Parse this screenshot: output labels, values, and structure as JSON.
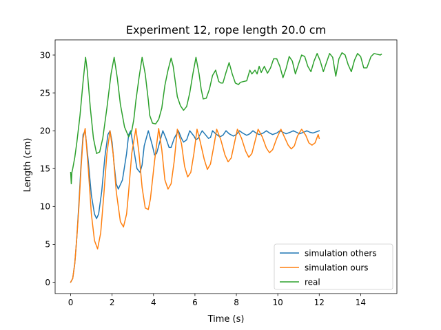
{
  "chart_data": {
    "type": "line",
    "title": "Experiment 12, rope length 20.0 cm",
    "xlabel": "Time (s)",
    "ylabel": "Length (cm)",
    "xlim": [
      -0.75,
      15.75
    ],
    "ylim": [
      -1.5,
      32
    ],
    "xticks": [
      0,
      2,
      4,
      6,
      8,
      10,
      12,
      14
    ],
    "yticks": [
      0,
      5,
      10,
      15,
      20,
      25,
      30
    ],
    "grid": false,
    "legend": "lower right",
    "colors": {
      "simulation_others": "#1f77b4",
      "simulation_ours": "#ff7f0e",
      "real": "#2ca02c"
    },
    "series": [
      {
        "name": "simulation others",
        "color": "#1f77b4",
        "x": [
          0,
          0.1,
          0.2,
          0.3,
          0.4,
          0.5,
          0.6,
          0.7,
          0.85,
          1.0,
          1.15,
          1.25,
          1.35,
          1.5,
          1.65,
          1.8,
          1.9,
          2.0,
          2.1,
          2.2,
          2.3,
          2.5,
          2.7,
          2.8,
          2.9,
          3.05,
          3.2,
          3.35,
          3.45,
          3.55,
          3.75,
          3.95,
          4.05,
          4.15,
          4.3,
          4.45,
          4.6,
          4.75,
          4.85,
          5.0,
          5.2,
          5.35,
          5.45,
          5.6,
          5.75,
          5.95,
          6.05,
          6.15,
          6.35,
          6.5,
          6.65,
          6.75,
          6.85,
          7.0,
          7.2,
          7.35,
          7.5,
          7.65,
          7.85,
          8.0,
          8.15,
          8.3,
          8.5,
          8.65,
          8.8,
          8.95,
          9.1,
          9.3,
          9.45,
          9.6,
          9.75,
          9.95,
          10.1,
          10.25,
          10.4,
          10.6,
          10.75,
          10.9,
          11.05,
          11.25,
          11.4,
          11.55,
          11.7,
          11.9,
          12.0
        ],
        "y": [
          0,
          0.5,
          2.5,
          6,
          10.5,
          15.5,
          19.5,
          20,
          16,
          11.5,
          9,
          8.4,
          9,
          12,
          16.5,
          19.5,
          20,
          18.5,
          15.5,
          13,
          12.3,
          13.5,
          17,
          19.5,
          20,
          17.5,
          15,
          14.5,
          15.5,
          18,
          20,
          18,
          16.8,
          17,
          18.5,
          20,
          19,
          17.8,
          17.8,
          19,
          20,
          19,
          18.5,
          18.8,
          20,
          19.3,
          18.8,
          19,
          20,
          19.5,
          19,
          19.1,
          20,
          19.6,
          19.2,
          19.4,
          20,
          19.6,
          19.3,
          19.5,
          20,
          19.7,
          19.4,
          19.6,
          20,
          19.7,
          19.5,
          19.7,
          20,
          19.7,
          19.5,
          19.7,
          20,
          19.8,
          19.6,
          19.8,
          20,
          19.8,
          19.6,
          19.8,
          20,
          19.8,
          19.7,
          19.9,
          20
        ]
      },
      {
        "name": "simulation ours",
        "color": "#ff7f0e",
        "x": [
          0,
          0.1,
          0.2,
          0.3,
          0.4,
          0.5,
          0.6,
          0.7,
          0.85,
          1.0,
          1.15,
          1.3,
          1.45,
          1.6,
          1.75,
          1.9,
          2.05,
          2.2,
          2.4,
          2.55,
          2.7,
          2.8,
          2.95,
          3.15,
          3.3,
          3.45,
          3.6,
          3.75,
          3.85,
          4.05,
          4.25,
          4.4,
          4.55,
          4.7,
          4.85,
          5.0,
          5.15,
          5.35,
          5.5,
          5.65,
          5.8,
          5.95,
          6.1,
          6.25,
          6.45,
          6.6,
          6.75,
          6.9,
          7.05,
          7.25,
          7.45,
          7.6,
          7.75,
          7.9,
          8.05,
          8.25,
          8.45,
          8.6,
          8.75,
          8.9,
          9.05,
          9.25,
          9.45,
          9.6,
          9.75,
          9.95,
          10.15,
          10.3,
          10.5,
          10.65,
          10.8,
          10.95,
          11.15,
          11.35,
          11.5,
          11.65,
          11.8,
          11.95,
          12.0
        ],
        "y": [
          0,
          0.5,
          2.5,
          6,
          10,
          15,
          19,
          20.3,
          15,
          9,
          5.5,
          4.4,
          6.5,
          11.5,
          17,
          20,
          17,
          12,
          8,
          7.3,
          9,
          12,
          17,
          20.3,
          17,
          12.5,
          9.8,
          9.6,
          11,
          16,
          20.3,
          17.5,
          13.5,
          12.3,
          13,
          16,
          20.2,
          18.3,
          15.3,
          13.9,
          14.5,
          17,
          20.2,
          18.6,
          16.2,
          14.9,
          15.6,
          17.8,
          20.2,
          18.8,
          16.8,
          15.9,
          16.4,
          18.3,
          20.2,
          19,
          17.3,
          16.5,
          17,
          18.6,
          20.2,
          19.2,
          17.7,
          17.1,
          17.5,
          19,
          20.2,
          19.3,
          18.1,
          17.6,
          18,
          19.3,
          20.2,
          19.4,
          18.4,
          18.1,
          18.4,
          19.5,
          19
        ]
      },
      {
        "name": "real",
        "color": "#2ca02c",
        "x": [
          0,
          0.03,
          0.06,
          0.1,
          0.2,
          0.3,
          0.45,
          0.6,
          0.72,
          0.8,
          0.95,
          1.1,
          1.25,
          1.4,
          1.55,
          1.75,
          1.95,
          2.1,
          2.25,
          2.4,
          2.6,
          2.8,
          2.95,
          3.05,
          3.15,
          3.3,
          3.45,
          3.6,
          3.75,
          3.82,
          3.95,
          4.1,
          4.25,
          4.4,
          4.55,
          4.7,
          4.85,
          4.95,
          5.05,
          5.15,
          5.3,
          5.45,
          5.6,
          5.75,
          5.9,
          6.05,
          6.2,
          6.3,
          6.4,
          6.55,
          6.7,
          6.85,
          7.0,
          7.15,
          7.25,
          7.35,
          7.5,
          7.65,
          7.8,
          7.95,
          8.1,
          8.2,
          8.35,
          8.5,
          8.65,
          8.75,
          8.9,
          9.0,
          9.1,
          9.2,
          9.35,
          9.5,
          9.65,
          9.8,
          9.95,
          10.1,
          10.25,
          10.4,
          10.55,
          10.7,
          10.85,
          11.0,
          11.15,
          11.3,
          11.45,
          11.6,
          11.75,
          11.9,
          12.05,
          12.2,
          12.35,
          12.5,
          12.65,
          12.8,
          12.95,
          13.1,
          13.25,
          13.4,
          13.55,
          13.7,
          13.85,
          14.0,
          14.15,
          14.3,
          14.5,
          14.65,
          14.8,
          14.95,
          15.0
        ],
        "y": [
          14.5,
          13,
          14.5,
          15,
          16.5,
          18.5,
          22,
          26.5,
          29.7,
          28,
          23,
          19,
          17,
          17.2,
          19,
          23,
          27.5,
          29.7,
          27,
          23.5,
          20.5,
          19.2,
          20,
          21.5,
          24,
          27,
          29.7,
          27.5,
          24,
          22,
          21,
          20.9,
          21.5,
          23,
          26,
          28,
          29.6,
          28.5,
          26.5,
          24.5,
          23.3,
          22.7,
          23.2,
          25,
          27.5,
          29.7,
          27.5,
          25.5,
          24.2,
          24.3,
          25.5,
          27.3,
          28,
          26.5,
          26.3,
          26.3,
          27.7,
          29,
          27.5,
          26.3,
          26.1,
          26.4,
          26.5,
          26.6,
          28,
          27.5,
          28,
          27.5,
          28.5,
          27.7,
          28.5,
          27.6,
          28.3,
          29.5,
          29.5,
          28.5,
          27,
          28.2,
          29.8,
          29.2,
          27.5,
          28.8,
          30,
          29.8,
          28.5,
          27.8,
          29.2,
          30.2,
          29.2,
          27.8,
          29,
          30.2,
          29.7,
          27.2,
          29.5,
          30.3,
          30,
          28.7,
          27.8,
          29.3,
          30.2,
          29.8,
          28.3,
          28.3,
          29.8,
          30.2,
          30.1,
          30.0,
          30.1
        ]
      }
    ]
  }
}
